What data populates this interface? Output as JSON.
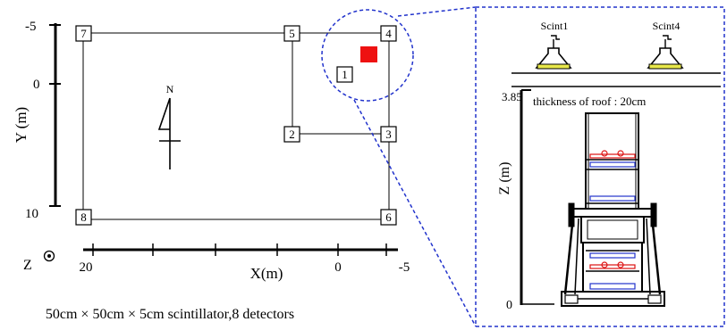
{
  "colors": {
    "line": "#000000",
    "dash": "#2233cc",
    "source": "#ee1111",
    "detector_box_red": "#dd1111",
    "detector_box_blue": "#2233cc",
    "scint_fill": "#e8e84a"
  },
  "plan_view": {
    "y_axis_title": "Y (m)",
    "y_tick_labels": [
      "-5",
      "0",
      "10"
    ],
    "x_axis_title": "X(m)",
    "x_tick_labels": [
      "20",
      "0",
      "-5"
    ],
    "z_axis_symbol": "Z",
    "north_label": "N",
    "detector_labels": [
      "1",
      "2",
      "3",
      "4",
      "5",
      "6",
      "7",
      "8"
    ],
    "caption": "50cm × 50cm × 5cm scintillator,8 detectors"
  },
  "side_view": {
    "scint_labels": [
      "Scint1",
      "Scint4"
    ],
    "z_top_label": "3.85",
    "z_bottom_label": "0",
    "z_axis_title": "Z (m)",
    "roof_note": "thickness of roof : 20cm"
  }
}
